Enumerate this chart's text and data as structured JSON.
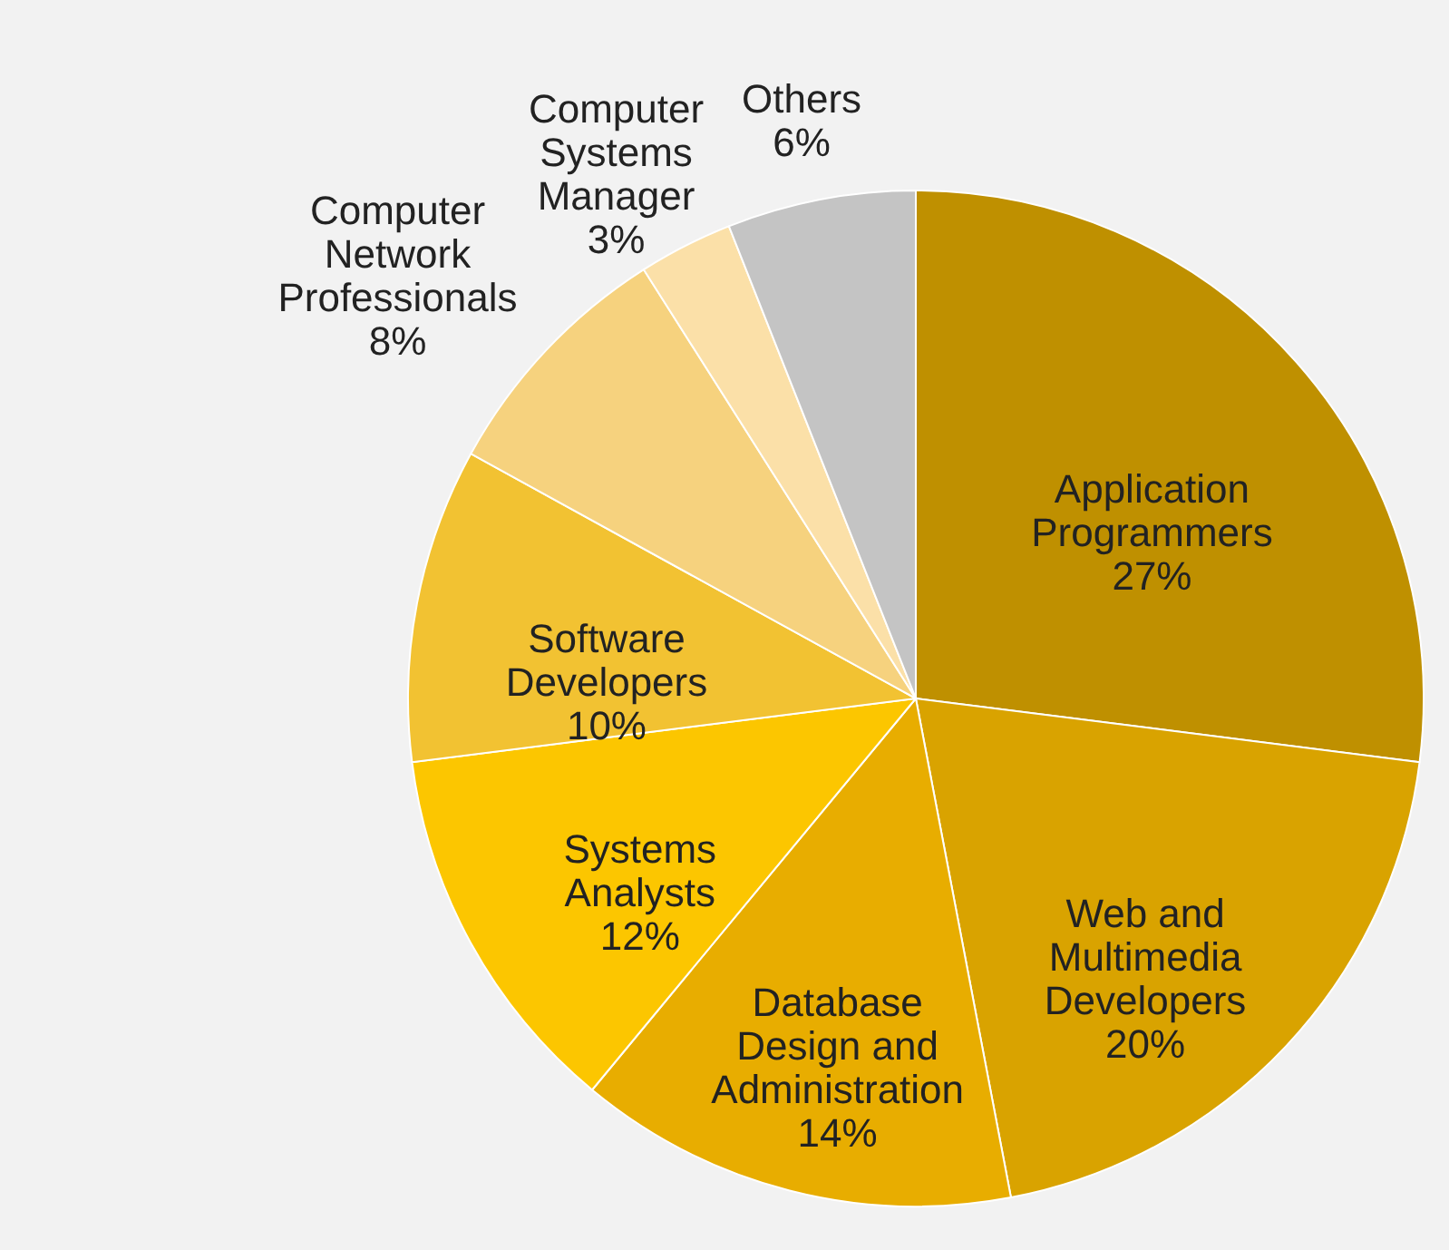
{
  "chart_data": {
    "type": "pie",
    "categories": [
      "Application Programmers",
      "Web and Multimedia Developers",
      "Database Design and Administration",
      "Systems Analysts",
      "Software Developers",
      "Computer Network Professionals",
      "Computer Systems Manager",
      "Others"
    ],
    "values": [
      27,
      20,
      14,
      12,
      10,
      8,
      3,
      6
    ],
    "value_labels": [
      "27%",
      "20%",
      "14%",
      "12%",
      "10%",
      "8%",
      "3%",
      "6%"
    ],
    "colors": [
      "#bf9000",
      "#d9a300",
      "#e8ad00",
      "#fcc600",
      "#f2c232",
      "#f6d27e",
      "#fbe0a8",
      "#c4c4c4"
    ],
    "legend": false
  }
}
